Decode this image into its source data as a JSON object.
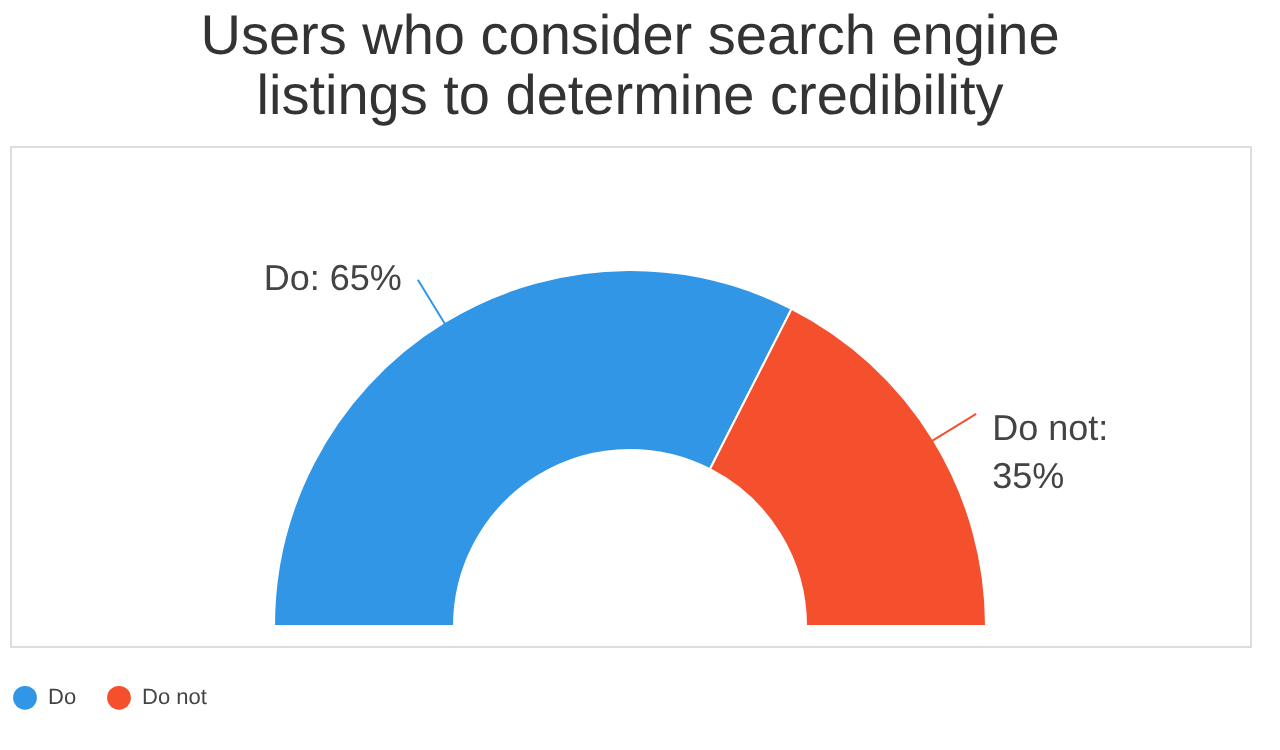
{
  "chart_data": {
    "type": "donut",
    "title": [
      "Users who consider search engine",
      "listings to determine credibility"
    ],
    "categories": [
      "Do",
      "Do not"
    ],
    "values": [
      65,
      35
    ],
    "colors": [
      "#3296e6",
      "#f5502d"
    ],
    "value_labels": [
      "Do: 65%",
      "Do not:\n35%"
    ],
    "legend": "bottom"
  }
}
